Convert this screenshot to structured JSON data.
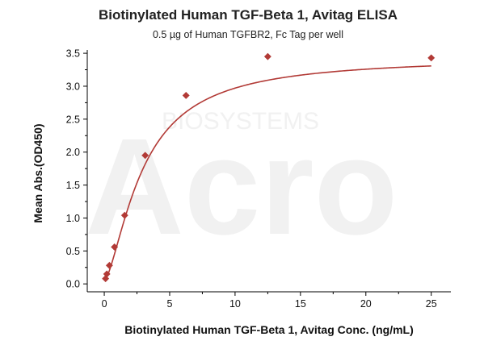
{
  "chart_data": {
    "type": "scatter",
    "title": "Biotinylated Human TGF-Beta 1, Avitag ELISA",
    "subtitle": "0.5 µg of Human TGFBR2, Fc Tag per well",
    "xlabel": "Biotinylated Human TGF-Beta 1, Avitag Conc. (ng/mL)",
    "ylabel": "Mean Abs.(OD450)",
    "xlim": [
      -1.3,
      26.5
    ],
    "ylim": [
      -0.12,
      3.55
    ],
    "xticks": [
      0,
      5,
      10,
      15,
      20,
      25
    ],
    "yticks": [
      0.0,
      0.5,
      1.0,
      1.5,
      2.0,
      2.5,
      3.0,
      3.5
    ],
    "x_tick_labels": [
      "0",
      "5",
      "10",
      "15",
      "20",
      "25"
    ],
    "y_tick_labels": [
      "0.0",
      "0.5",
      "1.0",
      "1.5",
      "2.0",
      "2.5",
      "3.0",
      "3.5"
    ],
    "grid": false,
    "legend": "none",
    "marker": "diamond",
    "color": "#b23a36",
    "points": {
      "x": [
        0.098,
        0.195,
        0.39,
        0.78,
        1.56,
        3.13,
        6.25,
        12.5,
        25
      ],
      "y": [
        0.08,
        0.15,
        0.28,
        0.56,
        1.04,
        1.95,
        2.86,
        3.45,
        3.43
      ]
    },
    "fit_curve": {
      "type": "4PL",
      "bottom": 0.045,
      "top": 3.44,
      "ec50": 2.95,
      "hill": 1.5
    },
    "watermark": "ACRO BIOSYSTEMS"
  }
}
